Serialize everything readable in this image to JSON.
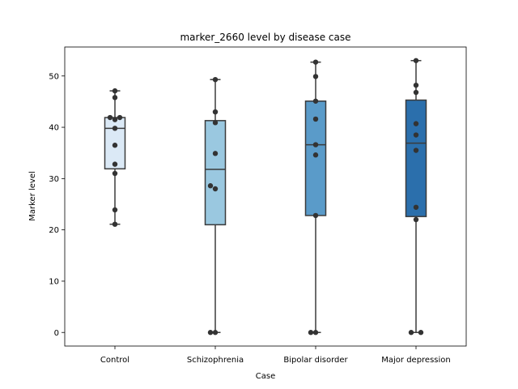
{
  "chart_data": {
    "type": "box",
    "title": "marker_2660 level by disease case",
    "xlabel": "Case",
    "ylabel": "Marker level",
    "ylim": [
      -2.65,
      55.65
    ],
    "yticks": [
      0,
      10,
      20,
      30,
      40,
      50
    ],
    "ytick_labels": [
      "0",
      "10",
      "20",
      "30",
      "40",
      "50"
    ],
    "grid": false,
    "categories": [
      "Control",
      "Schizophrenia",
      "Bipolar disorder",
      "Major depression"
    ],
    "colors": [
      "#dbe9f6",
      "#9ac8e0",
      "#5a9bc9",
      "#2b6fac"
    ],
    "boxes": [
      {
        "min": 21.1,
        "q1": 31.9,
        "median": 39.8,
        "q3": 41.9,
        "max": 47.1
      },
      {
        "min": 0.0,
        "q1": 21.0,
        "median": 31.8,
        "q3": 41.3,
        "max": 49.3
      },
      {
        "min": 0.0,
        "q1": 22.8,
        "median": 36.6,
        "q3": 45.1,
        "max": 52.7
      },
      {
        "min": 0.0,
        "q1": 22.6,
        "median": 36.9,
        "q3": 45.3,
        "max": 53.0
      }
    ],
    "points": [
      [
        {
          "y": 47.1,
          "dx": 0
        },
        {
          "y": 45.8,
          "dx": 0
        },
        {
          "y": 41.9,
          "dx": -6
        },
        {
          "y": 41.9,
          "dx": 6
        },
        {
          "y": 41.5,
          "dx": 0
        },
        {
          "y": 39.8,
          "dx": 0
        },
        {
          "y": 36.5,
          "dx": 0
        },
        {
          "y": 32.8,
          "dx": 0
        },
        {
          "y": 31.0,
          "dx": 0
        },
        {
          "y": 23.9,
          "dx": 0
        },
        {
          "y": 21.1,
          "dx": 0
        }
      ],
      [
        {
          "y": 49.3,
          "dx": 0
        },
        {
          "y": 43.0,
          "dx": 0
        },
        {
          "y": 40.9,
          "dx": 0
        },
        {
          "y": 34.9,
          "dx": 0
        },
        {
          "y": 28.6,
          "dx": -6
        },
        {
          "y": 28.0,
          "dx": 0
        },
        {
          "y": 0.0,
          "dx": -6
        },
        {
          "y": 0.0,
          "dx": 0
        }
      ],
      [
        {
          "y": 52.7,
          "dx": 0
        },
        {
          "y": 49.9,
          "dx": 0
        },
        {
          "y": 45.1,
          "dx": 0
        },
        {
          "y": 41.6,
          "dx": 0
        },
        {
          "y": 36.6,
          "dx": 0
        },
        {
          "y": 34.6,
          "dx": 0
        },
        {
          "y": 22.8,
          "dx": 0
        },
        {
          "y": 0.0,
          "dx": -6
        },
        {
          "y": 0.0,
          "dx": 0
        }
      ],
      [
        {
          "y": 53.0,
          "dx": 0
        },
        {
          "y": 48.2,
          "dx": 0
        },
        {
          "y": 46.8,
          "dx": 0
        },
        {
          "y": 40.7,
          "dx": 0
        },
        {
          "y": 38.5,
          "dx": 0
        },
        {
          "y": 35.5,
          "dx": 0
        },
        {
          "y": 24.4,
          "dx": 0
        },
        {
          "y": 22.0,
          "dx": 0
        },
        {
          "y": 0.0,
          "dx": -6
        },
        {
          "y": 0.0,
          "dx": 6
        }
      ]
    ]
  }
}
